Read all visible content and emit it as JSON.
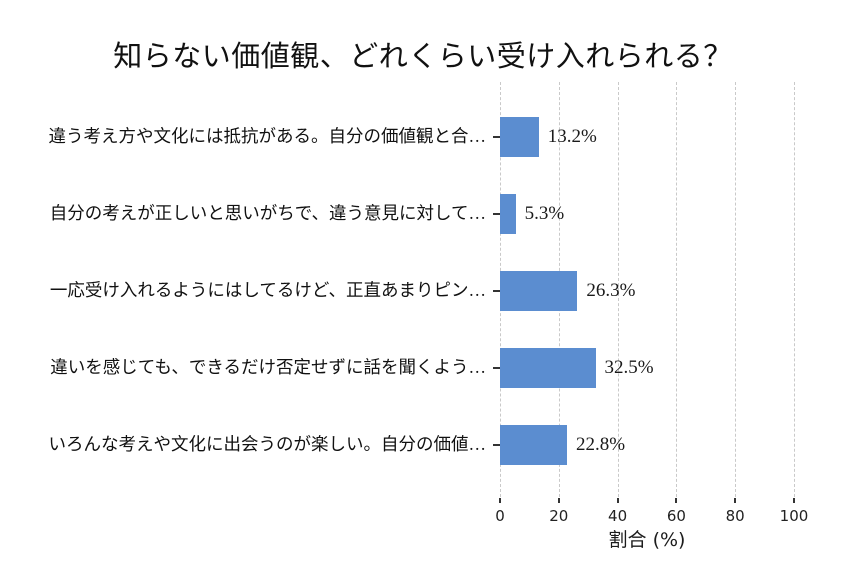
{
  "chart_data": {
    "type": "bar",
    "orientation": "horizontal",
    "title": "知らない価値観、どれくらい受け入れられる？",
    "categories": [
      "違う考え方や文化には抵抗がある。自分の価値観と合…",
      "自分の考えが正しいと思いがちで、違う意見に対して…",
      "一応受け入れるようにはしてるけど、正直あまりピン…",
      "違いを感じても、できるだけ否定せずに話を聞くよう…",
      "いろんな考えや文化に出会うのが楽しい。自分の価値…"
    ],
    "values": [
      13.2,
      5.3,
      26.3,
      32.5,
      22.8
    ],
    "value_labels": [
      "13.2%",
      "5.3%",
      "26.3%",
      "32.5%",
      "22.8%"
    ],
    "xlabel": "割合 (%)",
    "xlim": [
      0,
      100
    ],
    "xticks": [
      0,
      20,
      40,
      60,
      80,
      100
    ],
    "grid": "vertical-dashed",
    "legend": "none",
    "bar_color": "#5b8dd0",
    "grid_color": "#c9c9c9",
    "text_color": "#111111",
    "background_color": "#ffffff"
  }
}
